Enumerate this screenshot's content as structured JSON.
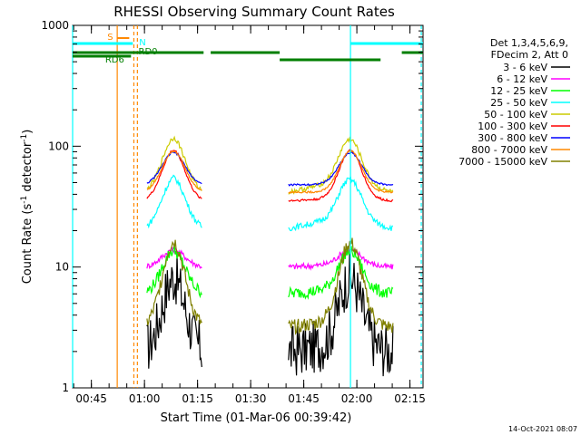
{
  "chart_data": {
    "type": "line",
    "title": "RHESSI Observing Summary Count Rates",
    "xlabel": "Start Time (01-Mar-06 00:39:42)",
    "ylabel_main": "Count Rate (s",
    "ylabel_sup1": "-1",
    "ylabel_mid": " detector",
    "ylabel_sup2": "-1",
    "ylabel_end": ")",
    "y_scale": "log",
    "ylim": [
      1,
      1000
    ],
    "xlim_minutes": [
      0,
      99
    ],
    "x_ticks": [
      {
        "m": 5.3,
        "label": "00:45"
      },
      {
        "m": 20.3,
        "label": "01:00"
      },
      {
        "m": 35.3,
        "label": "01:15"
      },
      {
        "m": 50.3,
        "label": "01:30"
      },
      {
        "m": 65.3,
        "label": "01:45"
      },
      {
        "m": 80.3,
        "label": "02:00"
      },
      {
        "m": 95.3,
        "label": "02:15"
      }
    ],
    "y_ticks": [
      {
        "v": 1,
        "label": "1"
      },
      {
        "v": 10,
        "label": "10"
      },
      {
        "v": 100,
        "label": "100"
      },
      {
        "v": 1000,
        "label": "1000"
      }
    ],
    "legend_header": [
      "Det 1,3,4,5,6,9,",
      "FDecim 2, Att 0"
    ],
    "series": [
      {
        "name": "3 - 6 keV",
        "color": "#000000"
      },
      {
        "name": "6 - 12 keV",
        "color": "#ff00ff"
      },
      {
        "name": "12 - 25 keV",
        "color": "#00ff00"
      },
      {
        "name": "25 - 50 keV",
        "color": "#00ffff"
      },
      {
        "name": "50 - 100 keV",
        "color": "#cccc00"
      },
      {
        "name": "100 - 300 keV",
        "color": "#ff0000"
      },
      {
        "name": "300 - 800 keV",
        "color": "#0000ff"
      },
      {
        "name": "800 - 7000 keV",
        "color": "#ff8800"
      },
      {
        "name": "7000 - 15000 keV",
        "color": "#808000"
      }
    ],
    "flags": [
      {
        "label": "S",
        "color": "#ff8800"
      },
      {
        "label": "N",
        "color": "#00ffff"
      },
      {
        "label": "RD0",
        "color": "#007f00"
      },
      {
        "label": "RD6",
        "color": "#007f00"
      }
    ],
    "vertical_lines": [
      {
        "m": 0.0,
        "color": "#00ffff",
        "style": "solid"
      },
      {
        "m": 12.6,
        "color": "#ff8800",
        "style": "solid"
      },
      {
        "m": 17.3,
        "color": "#ff8800",
        "style": "dashed"
      },
      {
        "m": 18.3,
        "color": "#ff8800",
        "style": "dashed"
      },
      {
        "m": 78.5,
        "color": "#00ffff",
        "style": "solid"
      },
      {
        "m": 98.5,
        "color": "#00ffff",
        "style": "dashed"
      }
    ],
    "footer_date": "14-Oct-2021 08:07"
  }
}
